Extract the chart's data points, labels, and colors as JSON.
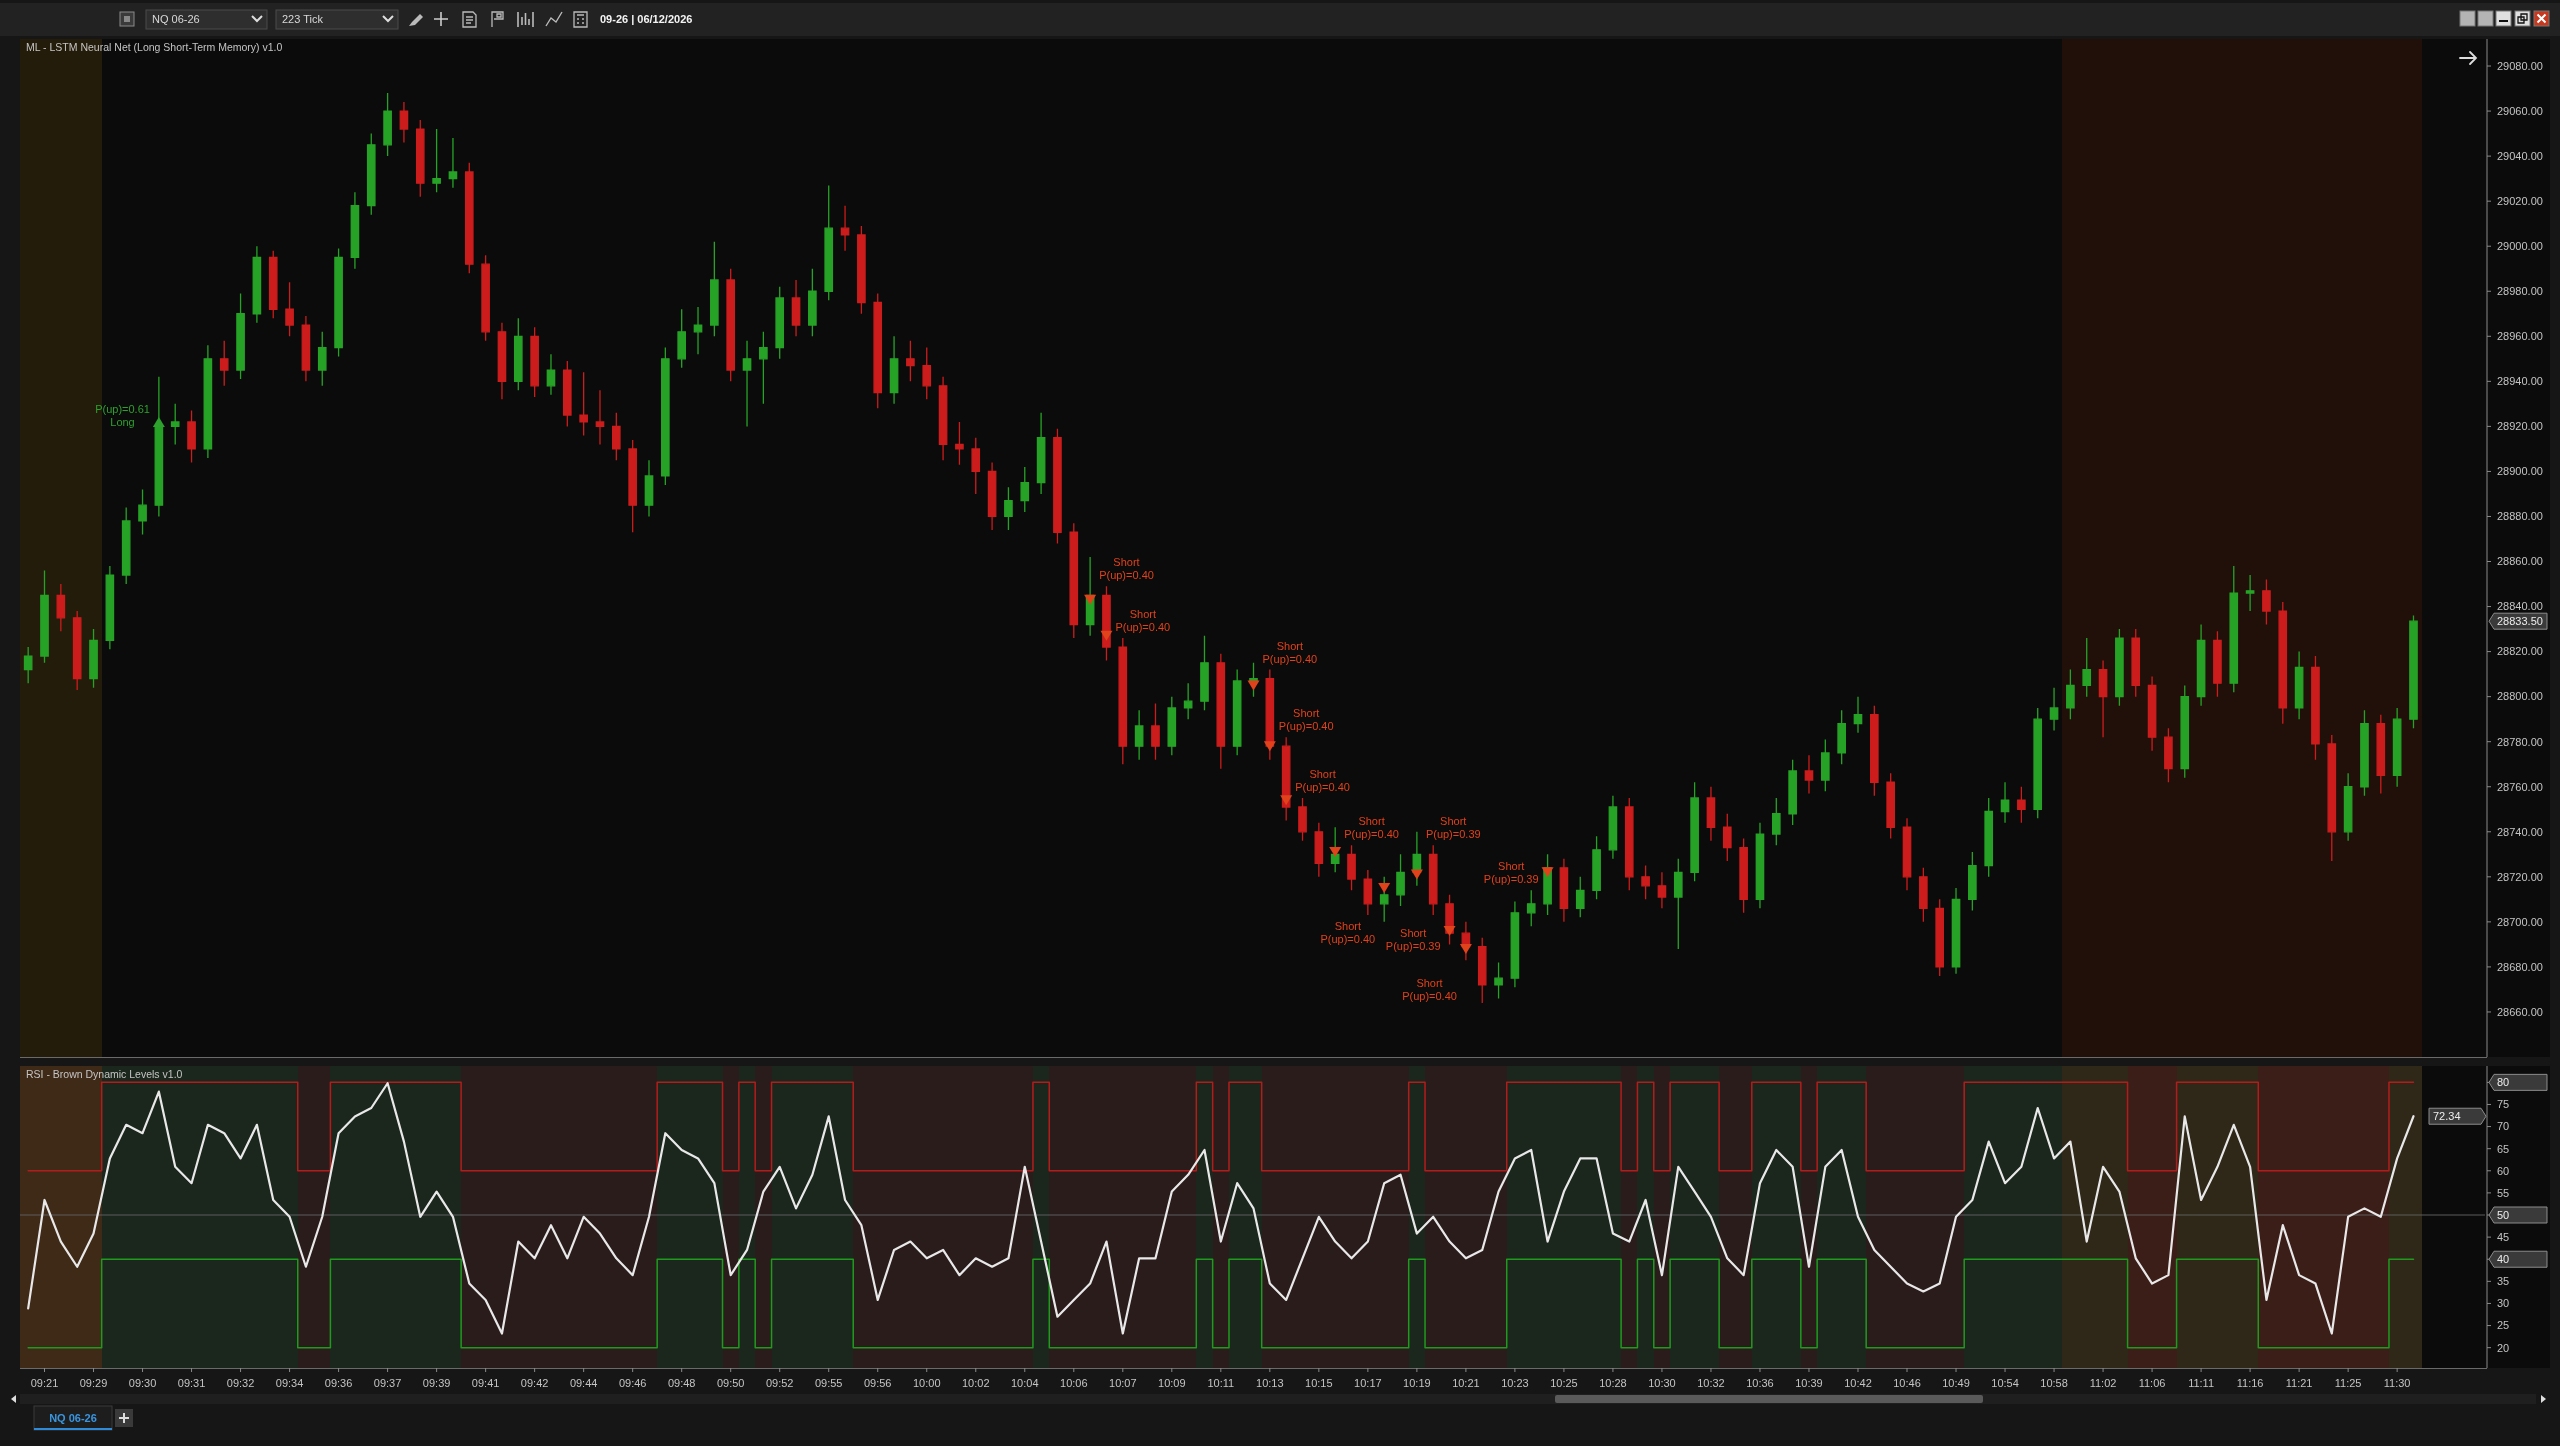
{
  "chart_data": [
    {
      "type": "candlestick",
      "title": "ML - LSTM Neural Net (Long Short-Term Memory) v1.0",
      "categories": [
        null,
        null,
        null,
        null,
        null,
        null,
        null,
        null,
        null,
        null,
        null,
        null,
        null,
        null,
        null,
        null,
        null,
        null,
        null,
        null,
        null,
        null,
        null,
        null,
        null,
        null,
        null,
        null,
        null,
        null,
        null,
        null,
        null,
        null,
        null,
        null,
        null,
        null,
        null,
        null,
        null,
        null,
        null,
        null,
        null,
        null,
        null,
        null,
        null,
        null,
        null,
        null,
        null,
        null,
        null,
        null,
        null,
        null,
        null,
        null,
        null,
        null,
        null,
        null,
        null,
        null,
        null,
        null,
        null,
        null,
        null,
        null,
        null,
        null,
        null,
        null,
        null,
        null,
        null,
        null,
        null,
        null,
        null,
        null,
        null,
        null,
        null,
        null,
        null,
        null,
        null,
        null,
        null,
        null,
        null,
        null,
        null,
        null,
        null,
        null,
        null,
        null,
        null,
        null,
        null,
        null,
        null,
        null,
        null,
        null,
        null,
        null,
        null,
        null,
        null,
        null,
        null,
        null,
        null,
        null,
        null,
        null,
        null,
        null,
        null,
        null,
        null,
        null,
        null,
        null,
        null,
        null,
        null,
        null,
        null,
        null,
        null,
        null,
        null,
        null,
        null,
        null,
        null,
        null,
        null,
        null,
        null,
        null,
        null,
        null,
        null
      ],
      "ohlc": [
        [
          28812,
          28822,
          28806,
          28818
        ],
        [
          28818,
          28856,
          28815,
          28845
        ],
        [
          28845,
          28850,
          28829,
          28835
        ],
        [
          28835,
          28838,
          28803,
          28808
        ],
        [
          28808,
          28830,
          28804,
          28825
        ],
        [
          28825,
          28858,
          28821,
          28854
        ],
        [
          28854,
          28884,
          28850,
          28878
        ],
        [
          28878,
          28892,
          28872,
          28885
        ],
        [
          28885,
          28942,
          28880,
          28920
        ],
        [
          28920,
          28930,
          28912,
          28922
        ],
        [
          28922,
          28927,
          28904,
          28910
        ],
        [
          28910,
          28956,
          28906,
          28950
        ],
        [
          28950,
          28958,
          28938,
          28945
        ],
        [
          28945,
          28979,
          28941,
          28970
        ],
        [
          28970,
          29000,
          28966,
          28995
        ],
        [
          28995,
          28998,
          28968,
          28972
        ],
        [
          28972,
          28984,
          28960,
          28965
        ],
        [
          28965,
          28969,
          28940,
          28945
        ],
        [
          28945,
          28962,
          28938,
          28955
        ],
        [
          28955,
          28999,
          28951,
          28995
        ],
        [
          28995,
          29024,
          28990,
          29018
        ],
        [
          29018,
          29050,
          29014,
          29045
        ],
        [
          29045,
          29068,
          29040,
          29060
        ],
        [
          29060,
          29064,
          29046,
          29052
        ],
        [
          29052,
          29056,
          29022,
          29028
        ],
        [
          29028,
          29052,
          29024,
          29030
        ],
        [
          29030,
          29048,
          29026,
          29033
        ],
        [
          29033,
          29037,
          28988,
          28992
        ],
        [
          28992,
          28996,
          28958,
          28962
        ],
        [
          28962,
          28966,
          28932,
          28940
        ],
        [
          28940,
          28968,
          28936,
          28960
        ],
        [
          28960,
          28964,
          28933,
          28938
        ],
        [
          28938,
          28952,
          28934,
          28945
        ],
        [
          28945,
          28949,
          28920,
          28925
        ],
        [
          28925,
          28944,
          28916,
          28922
        ],
        [
          28922,
          28936,
          28912,
          28920
        ],
        [
          28920,
          28926,
          28905,
          28910
        ],
        [
          28910,
          28914,
          28873,
          28885
        ],
        [
          28885,
          28905,
          28880,
          28898
        ],
        [
          28898,
          28955,
          28894,
          28950
        ],
        [
          28950,
          28972,
          28946,
          28962
        ],
        [
          28962,
          28973,
          28952,
          28965
        ],
        [
          28965,
          29002,
          28960,
          28985
        ],
        [
          28985,
          28990,
          28940,
          28945
        ],
        [
          28945,
          28958,
          28920,
          28950
        ],
        [
          28950,
          28962,
          28930,
          28955
        ],
        [
          28955,
          28982,
          28950,
          28977
        ],
        [
          28977,
          28985,
          28960,
          28965
        ],
        [
          28965,
          28990,
          28960,
          28980
        ],
        [
          28980,
          29027,
          28976,
          29008
        ],
        [
          29008,
          29018,
          28998,
          29005
        ],
        [
          29005,
          29009,
          28970,
          28975
        ],
        [
          28975,
          28979,
          28928,
          28935
        ],
        [
          28935,
          28960,
          28930,
          28950
        ],
        [
          28950,
          28958,
          28940,
          28947
        ],
        [
          28947,
          28955,
          28932,
          28938
        ],
        [
          28938,
          28942,
          28905,
          28912
        ],
        [
          28912,
          28922,
          28903,
          28910
        ],
        [
          28910,
          28915,
          28890,
          28900
        ],
        [
          28900,
          28904,
          28874,
          28880
        ],
        [
          28880,
          28893,
          28874,
          28887
        ],
        [
          28887,
          28902,
          28882,
          28895
        ],
        [
          28895,
          28926,
          28890,
          28915
        ],
        [
          28915,
          28919,
          28868,
          28873
        ],
        [
          28873,
          28877,
          28826,
          28832
        ],
        [
          28832,
          28862,
          28827,
          28845
        ],
        [
          28845,
          28849,
          28816,
          28822
        ],
        [
          28822,
          28826,
          28770,
          28778
        ],
        [
          28778,
          28794,
          28772,
          28787
        ],
        [
          28787,
          28797,
          28772,
          28778
        ],
        [
          28778,
          28800,
          28774,
          28795
        ],
        [
          28795,
          28806,
          28790,
          28798
        ],
        [
          28798,
          28827,
          28794,
          28815
        ],
        [
          28815,
          28819,
          28768,
          28778
        ],
        [
          28778,
          28812,
          28774,
          28807
        ],
        [
          28807,
          28815,
          28800,
          28808
        ],
        [
          28808,
          28812,
          28772,
          28778
        ],
        [
          28778,
          28782,
          28745,
          28751
        ],
        [
          28751,
          28755,
          28736,
          28740
        ],
        [
          28740,
          28744,
          28720,
          28726
        ],
        [
          28726,
          28742,
          28722,
          28730
        ],
        [
          28730,
          28734,
          28714,
          28719
        ],
        [
          28719,
          28723,
          28703,
          28708
        ],
        [
          28708,
          28720,
          28700,
          28712
        ],
        [
          28712,
          28730,
          28707,
          28722
        ],
        [
          28722,
          28740,
          28716,
          28730
        ],
        [
          28730,
          28734,
          28703,
          28708
        ],
        [
          28708,
          28712,
          28690,
          28695
        ],
        [
          28695,
          28700,
          28683,
          28689
        ],
        [
          28689,
          28693,
          28664,
          28672
        ],
        [
          28672,
          28682,
          28666,
          28675
        ],
        [
          28675,
          28709,
          28671,
          28704
        ],
        [
          28704,
          28714,
          28698,
          28708
        ],
        [
          28708,
          28730,
          28703,
          28724
        ],
        [
          28724,
          28728,
          28700,
          28706
        ],
        [
          28706,
          28720,
          28702,
          28714
        ],
        [
          28714,
          28738,
          28710,
          28732
        ],
        [
          28732,
          28756,
          28728,
          28751
        ],
        [
          28751,
          28755,
          28714,
          28720
        ],
        [
          28720,
          28725,
          28710,
          28716
        ],
        [
          28716,
          28722,
          28706,
          28711
        ],
        [
          28711,
          28728,
          28688,
          28722
        ],
        [
          28722,
          28762,
          28718,
          28755
        ],
        [
          28755,
          28760,
          28736,
          28742
        ],
        [
          28742,
          28748,
          28727,
          28733
        ],
        [
          28733,
          28737,
          28704,
          28710
        ],
        [
          28710,
          28744,
          28706,
          28739
        ],
        [
          28739,
          28755,
          28734,
          28748
        ],
        [
          28748,
          28772,
          28743,
          28767
        ],
        [
          28767,
          28774,
          28757,
          28763
        ],
        [
          28763,
          28781,
          28758,
          28775
        ],
        [
          28775,
          28794,
          28770,
          28788
        ],
        [
          28788,
          28800,
          28784,
          28792
        ],
        [
          28792,
          28796,
          28756,
          28762
        ],
        [
          28762,
          28766,
          28737,
          28742
        ],
        [
          28742,
          28746,
          28714,
          28720
        ],
        [
          28720,
          28724,
          28700,
          28706
        ],
        [
          28706,
          28710,
          28676,
          28680
        ],
        [
          28680,
          28715,
          28677,
          28710
        ],
        [
          28710,
          28731,
          28705,
          28725
        ],
        [
          28725,
          28755,
          28720,
          28749
        ],
        [
          28749,
          28762,
          28744,
          28754
        ],
        [
          28754,
          28760,
          28744,
          28750
        ],
        [
          28750,
          28795,
          28746,
          28790
        ],
        [
          28790,
          28804,
          28785,
          28795
        ],
        [
          28795,
          28812,
          28790,
          28805
        ],
        [
          28805,
          28826,
          28800,
          28812
        ],
        [
          28812,
          28816,
          28782,
          28800
        ],
        [
          28800,
          28830,
          28796,
          28826
        ],
        [
          28826,
          28830,
          28800,
          28805
        ],
        [
          28805,
          28809,
          28776,
          28782
        ],
        [
          28782,
          28786,
          28762,
          28768
        ],
        [
          28768,
          28805,
          28764,
          28800
        ],
        [
          28800,
          28832,
          28796,
          28825
        ],
        [
          28825,
          28829,
          28800,
          28806
        ],
        [
          28806,
          28858,
          28802,
          28846
        ],
        [
          28846,
          28854,
          28838,
          28847
        ],
        [
          28847,
          28852,
          28832,
          28838
        ],
        [
          28838,
          28842,
          28788,
          28795
        ],
        [
          28795,
          28820,
          28790,
          28813
        ],
        [
          28813,
          28818,
          28772,
          28779
        ],
        [
          28779,
          28783,
          28727,
          28740
        ],
        [
          28740,
          28766,
          28736,
          28760
        ],
        [
          28760,
          28794,
          28756,
          28788
        ],
        [
          28788,
          28792,
          28757,
          28765
        ],
        [
          28765,
          28795,
          28760,
          28790
        ],
        [
          28790,
          28836,
          28786,
          28833.5
        ],
        null,
        null,
        null,
        null
      ],
      "series": [
        {
          "type": "scatter",
          "color": "#2ea02e",
          "marker": "triangle",
          "values": [
            null,
            null,
            null,
            null,
            null,
            null,
            null,
            null,
            28922,
            null,
            null,
            null,
            null,
            null,
            null,
            null,
            null,
            null,
            null,
            null,
            null,
            null,
            null,
            null,
            null,
            null,
            null,
            null,
            null,
            null,
            null,
            null,
            null,
            null,
            null,
            null,
            null,
            null,
            null,
            null,
            null,
            null,
            null,
            null,
            null,
            null,
            null,
            null,
            null,
            null,
            null,
            null,
            null,
            null,
            null,
            null,
            null,
            null,
            null,
            null,
            null,
            null,
            null,
            null,
            null,
            null,
            null,
            null,
            null,
            null,
            null,
            null,
            null,
            null,
            null,
            null,
            null,
            null,
            null,
            null,
            null,
            null,
            null,
            null,
            null,
            null,
            null,
            null,
            null,
            null,
            null,
            null,
            null,
            null,
            null,
            null,
            null,
            null,
            null,
            null,
            null,
            null,
            null,
            null,
            null,
            null,
            null,
            null,
            null,
            null,
            null,
            null,
            null,
            null,
            null,
            null,
            null,
            null,
            null,
            null,
            null,
            null,
            null,
            null,
            null,
            null,
            null,
            null,
            null,
            null,
            null,
            null,
            null,
            null,
            null,
            null,
            null,
            null,
            null,
            null,
            null,
            null,
            null,
            null,
            null,
            null,
            null,
            null,
            null,
            null,
            null
          ]
        },
        {
          "type": "scatter",
          "color": "#e0421c",
          "marker": "triangle",
          "values": [
            null,
            null,
            null,
            null,
            null,
            null,
            null,
            null,
            null,
            null,
            null,
            null,
            null,
            null,
            null,
            null,
            null,
            null,
            null,
            null,
            null,
            null,
            null,
            null,
            null,
            null,
            null,
            null,
            null,
            null,
            null,
            null,
            null,
            null,
            null,
            null,
            null,
            null,
            null,
            null,
            null,
            null,
            null,
            null,
            null,
            null,
            null,
            null,
            null,
            null,
            null,
            null,
            null,
            null,
            null,
            null,
            null,
            null,
            null,
            null,
            null,
            null,
            null,
            null,
            null,
            28843,
            28827,
            null,
            null,
            null,
            null,
            null,
            null,
            null,
            null,
            28805,
            28778,
            28754,
            null,
            null,
            28731,
            null,
            null,
            28715,
            null,
            28721,
            null,
            28696,
            28688,
            null,
            null,
            null,
            null,
            28722,
            null,
            null,
            null,
            null,
            null,
            null,
            null,
            null,
            null,
            null,
            null,
            null,
            null,
            null,
            null,
            null,
            null,
            null,
            null,
            null,
            null,
            null,
            null,
            null,
            null,
            null,
            null,
            null,
            null,
            null,
            null,
            null,
            null,
            null,
            null,
            null,
            null,
            null,
            null,
            null,
            null,
            null,
            null,
            null,
            null,
            null,
            null,
            null,
            null,
            null,
            null,
            null,
            null,
            null,
            null,
            null,
            null
          ]
        }
      ],
      "ylim": [
        28640,
        29092
      ],
      "yticks": [
        {
          "value": 28660,
          "label": "28660.00"
        },
        {
          "value": 28680,
          "label": "28680.00"
        },
        {
          "value": 28700,
          "label": "28700.00"
        },
        {
          "value": 28720,
          "label": "28720.00"
        },
        {
          "value": 28740,
          "label": "28740.00"
        },
        {
          "value": 28760,
          "label": "28760.00"
        },
        {
          "value": 28780,
          "label": "28780.00"
        },
        {
          "value": 28800,
          "label": "28800.00"
        },
        {
          "value": 28820,
          "label": "28820.00"
        },
        {
          "value": 28840,
          "label": "28840.00"
        },
        {
          "value": 28860,
          "label": "28860.00"
        },
        {
          "value": 28880,
          "label": "28880.00"
        },
        {
          "value": 28900,
          "label": "28900.00"
        },
        {
          "value": 28920,
          "label": "28920.00"
        },
        {
          "value": 28940,
          "label": "28940.00"
        },
        {
          "value": 28960,
          "label": "28960.00"
        },
        {
          "value": 28980,
          "label": "28980.00"
        },
        {
          "value": 29000,
          "label": "29000.00"
        },
        {
          "value": 29020,
          "label": "29020.00"
        },
        {
          "value": 29040,
          "label": "29040.00"
        },
        {
          "value": 29060,
          "label": "29060.00"
        },
        {
          "value": 29080,
          "label": "29080.00"
        }
      ],
      "tick_labels": "y",
      "annotations": [
        "NQ 06-26",
        "223 Tick",
        "09-26 | 06/12/2026",
        "NQ 06-26",
        "28833.50",
        "P(up)=0.61\nLong",
        "Short\nP(up)=0.40",
        "Short\nP(up)=0.40",
        "Short\nP(up)=0.40",
        "Short\nP(up)=0.40",
        "Short\nP(up)=0.40",
        "Short\nP(up)=0.40",
        "Short\nP(up)=0.40",
        "Short\nP(up)=0.39",
        "Short\nP(up)=0.39",
        "Short\nP(up)=0.40",
        "Short\nP(up)=0.39"
      ]
    },
    {
      "type": "line",
      "title": "RSI - Brown Dynamic Levels v1.0",
      "categories": [
        null,
        "09:21",
        null,
        null,
        "09:29",
        null,
        null,
        "09:30",
        null,
        null,
        "09:31",
        null,
        null,
        "09:32",
        null,
        null,
        "09:34",
        null,
        null,
        "09:36",
        null,
        null,
        "09:37",
        null,
        null,
        "09:39",
        null,
        null,
        "09:41",
        null,
        null,
        "09:42",
        null,
        null,
        "09:44",
        null,
        null,
        "09:46",
        null,
        null,
        "09:48",
        null,
        null,
        "09:50",
        null,
        null,
        "09:52",
        null,
        null,
        "09:55",
        null,
        null,
        "09:56",
        null,
        null,
        "10:00",
        null,
        null,
        "10:02",
        null,
        null,
        "10:04",
        null,
        null,
        "10:06",
        null,
        null,
        "10:07",
        null,
        null,
        "10:09",
        null,
        null,
        "10:11",
        null,
        null,
        "10:13",
        null,
        null,
        "10:15",
        null,
        null,
        "10:17",
        null,
        null,
        "10:19",
        null,
        null,
        "10:21",
        null,
        null,
        "10:23",
        null,
        null,
        "10:25",
        null,
        null,
        "10:28",
        null,
        null,
        "10:30",
        null,
        null,
        "10:32",
        null,
        null,
        "10:36",
        null,
        null,
        "10:39",
        null,
        null,
        "10:42",
        null,
        null,
        "10:46",
        null,
        null,
        "10:49",
        null,
        null,
        "10:54",
        null,
        null,
        "10:58",
        null,
        null,
        "11:02",
        null,
        null,
        "11:06",
        null,
        null,
        "11:11",
        null,
        null,
        "11:16",
        null,
        null,
        "11:21",
        null,
        null,
        "11:25",
        null,
        null,
        "11:30",
        null,
        null,
        null,
        null,
        null
      ],
      "series": [
        {
          "type": "step",
          "color": "#b41c1c",
          "values": [
            60,
            60,
            60,
            60,
            60,
            80,
            80,
            80,
            80,
            80,
            80,
            80,
            80,
            80,
            80,
            80,
            80,
            60,
            60,
            80,
            80,
            80,
            80,
            80,
            80,
            80,
            80,
            60,
            60,
            60,
            60,
            60,
            60,
            60,
            60,
            60,
            60,
            60,
            60,
            80,
            80,
            80,
            80,
            60,
            80,
            60,
            80,
            80,
            80,
            80,
            80,
            60,
            60,
            60,
            60,
            60,
            60,
            60,
            60,
            60,
            60,
            60,
            80,
            60,
            60,
            60,
            60,
            60,
            60,
            60,
            60,
            60,
            80,
            60,
            80,
            80,
            60,
            60,
            60,
            60,
            60,
            60,
            60,
            60,
            60,
            80,
            60,
            60,
            60,
            60,
            60,
            80,
            80,
            80,
            80,
            80,
            80,
            80,
            60,
            80,
            60,
            80,
            80,
            80,
            60,
            60,
            80,
            80,
            80,
            60,
            80,
            80,
            80,
            60,
            60,
            60,
            60,
            60,
            60,
            80,
            80,
            80,
            80,
            80,
            80,
            80,
            80,
            80,
            80,
            60,
            60,
            60,
            80,
            80,
            80,
            80,
            80,
            60,
            60,
            60,
            60,
            60,
            60,
            60,
            60,
            80,
            80,
            null,
            null,
            null,
            null
          ]
        },
        {
          "type": "step",
          "color": "#1f9a1f",
          "values": [
            20,
            20,
            20,
            20,
            20,
            40,
            40,
            40,
            40,
            40,
            40,
            40,
            40,
            40,
            40,
            40,
            40,
            20,
            20,
            40,
            40,
            40,
            40,
            40,
            40,
            40,
            40,
            20,
            20,
            20,
            20,
            20,
            20,
            20,
            20,
            20,
            20,
            20,
            20,
            40,
            40,
            40,
            40,
            20,
            40,
            20,
            40,
            40,
            40,
            40,
            40,
            20,
            20,
            20,
            20,
            20,
            20,
            20,
            20,
            20,
            20,
            20,
            40,
            20,
            20,
            20,
            20,
            20,
            20,
            20,
            20,
            20,
            40,
            20,
            40,
            40,
            20,
            20,
            20,
            20,
            20,
            20,
            20,
            20,
            20,
            40,
            20,
            20,
            20,
            20,
            20,
            40,
            40,
            40,
            40,
            40,
            40,
            40,
            20,
            40,
            20,
            40,
            40,
            40,
            20,
            20,
            40,
            40,
            40,
            20,
            40,
            40,
            40,
            20,
            20,
            20,
            20,
            20,
            20,
            40,
            40,
            40,
            40,
            40,
            40,
            40,
            40,
            40,
            40,
            20,
            20,
            20,
            40,
            40,
            40,
            40,
            40,
            20,
            20,
            20,
            20,
            20,
            20,
            20,
            20,
            40,
            40,
            null,
            null,
            null,
            null
          ]
        },
        {
          "color": "#e8e8e8",
          "values": [
            28.9,
            53.4,
            44,
            38.3,
            45.8,
            62.8,
            70.4,
            68.5,
            77.9,
            60.9,
            57.2,
            70.4,
            68.5,
            62.8,
            70.4,
            53.4,
            49.6,
            38.3,
            49.6,
            68.5,
            72.3,
            74.2,
            79.8,
            66.6,
            49.6,
            55.3,
            49.6,
            34.5,
            30.8,
            23.2,
            44,
            40.2,
            47.7,
            40.2,
            49.6,
            45.8,
            40.2,
            36.4,
            49.6,
            68.5,
            64.7,
            62.8,
            57.2,
            36.4,
            42.1,
            55.3,
            60.9,
            51.5,
            59.1,
            72.3,
            53.4,
            47.7,
            30.8,
            42.1,
            44,
            40.2,
            42.1,
            36.4,
            40.2,
            38.3,
            40.2,
            60.9,
            44,
            27,
            30.8,
            34.5,
            44,
            23.2,
            40.2,
            40.2,
            55.3,
            59.1,
            64.7,
            44,
            57.2,
            51.5,
            34.5,
            30.8,
            40.2,
            49.6,
            44,
            40.2,
            44,
            57.2,
            59.1,
            45.8,
            49.6,
            44,
            40.2,
            42.1,
            55.3,
            62.8,
            64.7,
            44,
            55.3,
            62.8,
            62.8,
            45.8,
            44,
            53.4,
            36.4,
            60.9,
            55.3,
            49.6,
            40.2,
            36.4,
            57.2,
            64.7,
            60.9,
            38.3,
            60.9,
            64.7,
            49.6,
            42.1,
            38.3,
            34.5,
            32.7,
            34.5,
            49.6,
            53.4,
            66.6,
            57.2,
            60.9,
            74.2,
            62.8,
            66.6,
            44,
            60.9,
            55.3,
            40.2,
            34.5,
            36.4,
            72.3,
            53.4,
            60.9,
            70.4,
            60.9,
            30.8,
            47.7,
            36.4,
            34.5,
            23.2,
            49.6,
            51.5,
            49.6,
            62.8,
            72.34,
            null,
            null,
            null,
            null
          ]
        }
      ],
      "ylim": [
        15.4,
        83.7
      ],
      "yticks": [
        20,
        25,
        30,
        35,
        40,
        45,
        50,
        55,
        60,
        65,
        70,
        75,
        80
      ],
      "ref_lines": [
        {
          "axis": "y",
          "value": 50,
          "color": "#5c5c5c"
        }
      ],
      "annotations": [
        "72.34"
      ]
    }
  ]
}
